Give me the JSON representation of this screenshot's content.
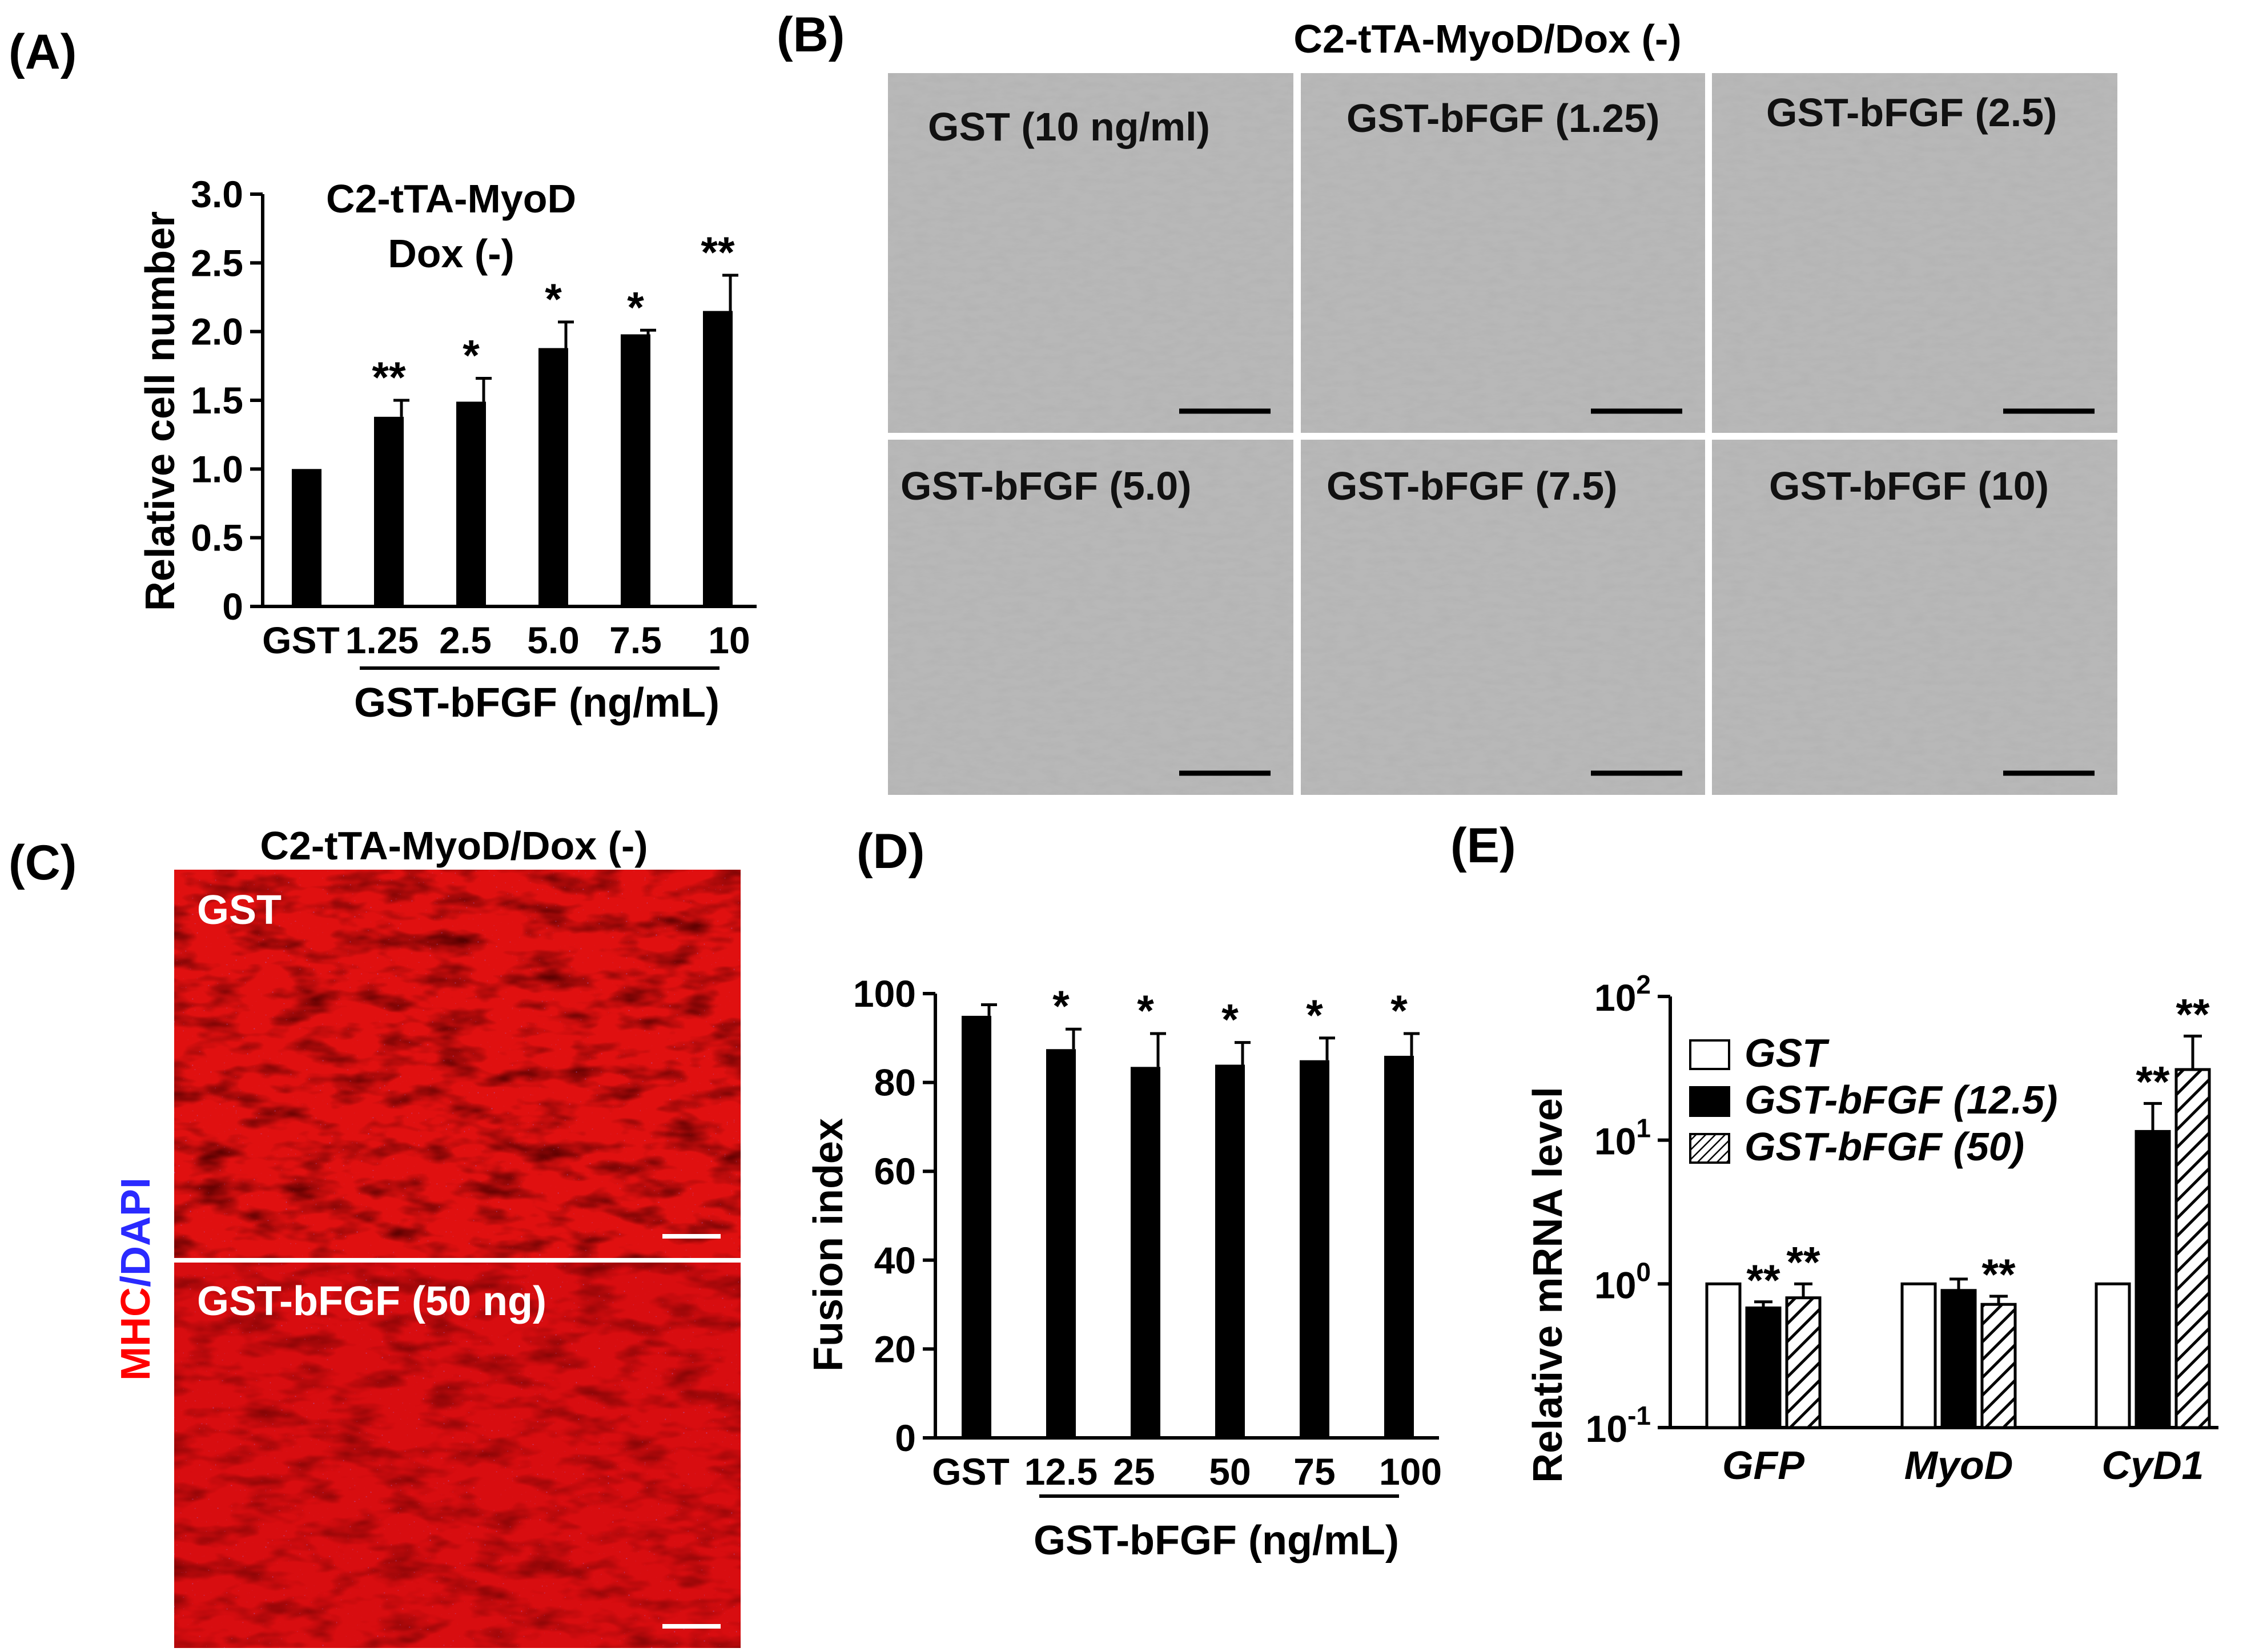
{
  "colors": {
    "bar": "#000000",
    "mhc": "#ff0000",
    "dapi": "#2a2aff",
    "micrograph": "#b8b8b8"
  },
  "panelA": {
    "letter": "(A)",
    "title_line1": "C2-tTA-MyoD",
    "title_line2": "Dox (-)",
    "group_label": "GST-bFGF (ng/mL)",
    "chart_data": {
      "type": "bar",
      "categories": [
        "GST",
        "1.25",
        "2.5",
        "5.0",
        "7.5",
        "10"
      ],
      "values": [
        1.0,
        1.38,
        1.49,
        1.88,
        1.98,
        2.15
      ],
      "errors": [
        0.0,
        0.12,
        0.17,
        0.19,
        0.03,
        0.26
      ],
      "significance": [
        "",
        "**",
        "*",
        "*",
        "*",
        "**"
      ],
      "ylabel": "Relative cell number",
      "xlabel": "GST-bFGF (ng/mL)",
      "ylim": [
        0,
        3.0
      ],
      "yticks": [
        "0",
        "0.5",
        "1.0",
        "1.5",
        "2.0",
        "2.5",
        "3.0"
      ]
    }
  },
  "panelB": {
    "letter": "(B)",
    "title": "C2-tTA-MyoD/Dox (-)",
    "images": [
      {
        "label": "GST (10 ng/ml)"
      },
      {
        "label": "GST-bFGF (1.25)"
      },
      {
        "label": "GST-bFGF (2.5)"
      },
      {
        "label": "GST-bFGF (5.0)"
      },
      {
        "label": "GST-bFGF (7.5)"
      },
      {
        "label": "GST-bFGF (10)"
      }
    ]
  },
  "panelC": {
    "letter": "(C)",
    "title": "C2-tTA-MyoD/Dox (-)",
    "side_label_mhc": "MHC",
    "side_label_sep": "/",
    "side_label_dapi": "DAPI",
    "images": [
      {
        "label": "GST"
      },
      {
        "label": "GST-bFGF (50 ng)"
      }
    ]
  },
  "panelD": {
    "letter": "(D)",
    "group_label": "GST-bFGF (ng/mL)",
    "chart_data": {
      "type": "bar",
      "categories": [
        "GST",
        "12.5",
        "25",
        "50",
        "75",
        "100"
      ],
      "values": [
        95,
        87.5,
        83.5,
        84,
        85,
        86
      ],
      "errors": [
        2.5,
        4.5,
        7.5,
        5,
        5,
        5
      ],
      "significance": [
        "",
        "*",
        "*",
        "*",
        "*",
        "*"
      ],
      "ylabel": "Fusion index",
      "xlabel": "GST-bFGF (ng/mL)",
      "ylim": [
        0,
        100
      ],
      "yticks": [
        "0",
        "20",
        "40",
        "60",
        "80",
        "100"
      ]
    }
  },
  "panelE": {
    "letter": "(E)",
    "chart_data": {
      "type": "bar",
      "yscale": "log",
      "categories": [
        "GFP",
        "MyoD",
        "CyD1"
      ],
      "series": [
        {
          "name": "GST",
          "values": [
            1.0,
            1.0,
            1.0
          ],
          "errors": [
            0,
            0,
            0
          ],
          "significance": [
            "",
            "",
            ""
          ],
          "style": "open"
        },
        {
          "name": "GST-bFGF (12.5)",
          "values": [
            0.68,
            0.9,
            11.5
          ],
          "errors": [
            0.07,
            0.18,
            6.5
          ],
          "significance": [
            "**",
            "",
            "**"
          ],
          "style": "solid"
        },
        {
          "name": "GST-bFGF (50)",
          "values": [
            0.8,
            0.72,
            31
          ],
          "errors": [
            0.2,
            0.1,
            22
          ],
          "significance": [
            "**",
            "**",
            "**"
          ],
          "style": "hatched"
        }
      ],
      "ylabel": "Relative mRNA level",
      "ylim": [
        0.1,
        100
      ],
      "ytick_base": "10",
      "ytick_exponents": [
        "-1",
        "0",
        "1",
        "2"
      ],
      "legend_position": "top-left"
    }
  }
}
